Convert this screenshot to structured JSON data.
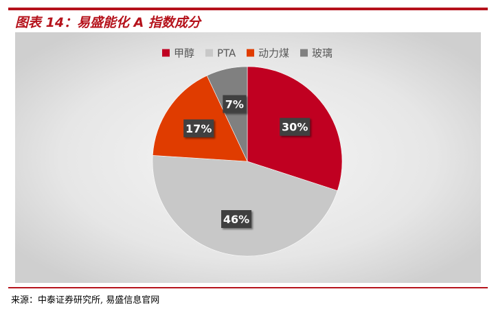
{
  "figure": {
    "title": "图表 14：易盛能化 A 指数成分",
    "source": "来源：中泰证券研究所, 易盛信息官网"
  },
  "colors": {
    "accent": "#b5121b",
    "panel_background": "#e6e6e6",
    "label_box": "#404040"
  },
  "chart_data": {
    "type": "pie",
    "title": "",
    "categories": [
      "甲醇",
      "PTA",
      "动力煤",
      "玻璃"
    ],
    "values": [
      30,
      46,
      17,
      7
    ],
    "data_labels": [
      "30%",
      "46%",
      "17%",
      "7%"
    ],
    "colors": [
      "#c00021",
      "#c8c8c8",
      "#e03c00",
      "#808080"
    ],
    "start_angle_deg": 0,
    "direction": "clockwise",
    "legend_position": "top"
  }
}
